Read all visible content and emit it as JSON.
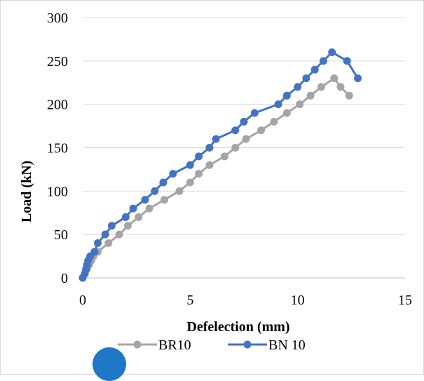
{
  "chart_data": {
    "type": "line",
    "xlabel": "Defelection   (mm)",
    "ylabel": "Load (kN)",
    "xlim": [
      0,
      15
    ],
    "ylim": [
      0,
      300
    ],
    "x_ticks": [
      "0",
      "5",
      "10",
      "15"
    ],
    "y_ticks": [
      "0",
      "50",
      "100",
      "150",
      "200",
      "250",
      "300"
    ],
    "grid": "horizontal",
    "legend_position": "bottom",
    "series": [
      {
        "name": "BR10",
        "color": "#a5a5a5",
        "points": [
          [
            0,
            0
          ],
          [
            0.1,
            5
          ],
          [
            0.2,
            10
          ],
          [
            0.3,
            15
          ],
          [
            0.4,
            20
          ],
          [
            0.5,
            25
          ],
          [
            0.7,
            30
          ],
          [
            1.2,
            40
          ],
          [
            1.7,
            50
          ],
          [
            2.1,
            60
          ],
          [
            2.6,
            70
          ],
          [
            3.1,
            80
          ],
          [
            3.8,
            90
          ],
          [
            4.5,
            100
          ],
          [
            5.0,
            110
          ],
          [
            5.4,
            120
          ],
          [
            5.9,
            130
          ],
          [
            6.6,
            140
          ],
          [
            7.1,
            150
          ],
          [
            7.6,
            160
          ],
          [
            8.3,
            170
          ],
          [
            8.9,
            180
          ],
          [
            9.5,
            190
          ],
          [
            10.1,
            200
          ],
          [
            10.6,
            210
          ],
          [
            11.1,
            220
          ],
          [
            11.7,
            230
          ],
          [
            12.0,
            220
          ],
          [
            12.4,
            210
          ]
        ]
      },
      {
        "name": "BN 10",
        "color": "#4472c4",
        "points": [
          [
            0,
            0
          ],
          [
            0.1,
            5
          ],
          [
            0.15,
            10
          ],
          [
            0.2,
            15
          ],
          [
            0.25,
            20
          ],
          [
            0.35,
            25
          ],
          [
            0.55,
            30
          ],
          [
            0.7,
            40
          ],
          [
            1.05,
            50
          ],
          [
            1.35,
            60
          ],
          [
            2.0,
            70
          ],
          [
            2.35,
            80
          ],
          [
            2.9,
            90
          ],
          [
            3.35,
            100
          ],
          [
            3.75,
            110
          ],
          [
            4.2,
            120
          ],
          [
            5.0,
            130
          ],
          [
            5.4,
            140
          ],
          [
            5.9,
            150
          ],
          [
            6.2,
            160
          ],
          [
            7.1,
            170
          ],
          [
            7.5,
            180
          ],
          [
            8.0,
            190
          ],
          [
            9.1,
            200
          ],
          [
            9.5,
            210
          ],
          [
            10.0,
            220
          ],
          [
            10.4,
            230
          ],
          [
            10.8,
            240
          ],
          [
            11.2,
            250
          ],
          [
            11.6,
            260
          ],
          [
            12.3,
            250
          ],
          [
            12.8,
            230
          ]
        ]
      }
    ]
  }
}
